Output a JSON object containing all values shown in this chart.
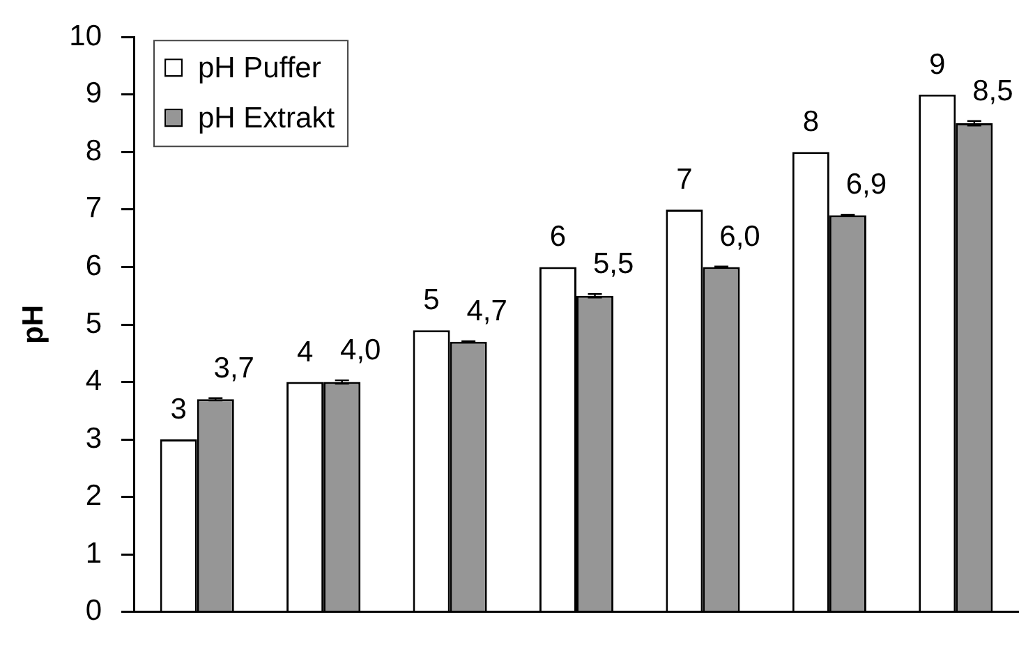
{
  "chart_data": {
    "type": "bar",
    "ylabel": "pH",
    "categories": [
      null,
      null,
      null,
      null,
      null,
      null,
      null
    ],
    "series": [
      {
        "name": "pH Puffer",
        "color": "#ffffff",
        "values": [
          3,
          4,
          4.9,
          6,
          7,
          8,
          9
        ],
        "value_labels": [
          "3",
          "4",
          "5",
          "6",
          "7",
          "8",
          "9"
        ]
      },
      {
        "name": "pH Extrakt",
        "color": "#969696",
        "values": [
          3.7,
          4.0,
          4.7,
          5.5,
          6.0,
          6.9,
          8.5
        ],
        "errors": [
          0.02,
          0.03,
          0.01,
          0.03,
          0.01,
          0.01,
          0.04
        ],
        "value_labels": [
          "3,7",
          "4,0",
          "4,7",
          "5,5",
          "6,0",
          "6,9",
          "8,5"
        ]
      }
    ],
    "ylim": [
      0,
      10
    ],
    "yticks": [
      0,
      1,
      2,
      3,
      4,
      5,
      6,
      7,
      8,
      9,
      10
    ],
    "legend": "top left"
  }
}
